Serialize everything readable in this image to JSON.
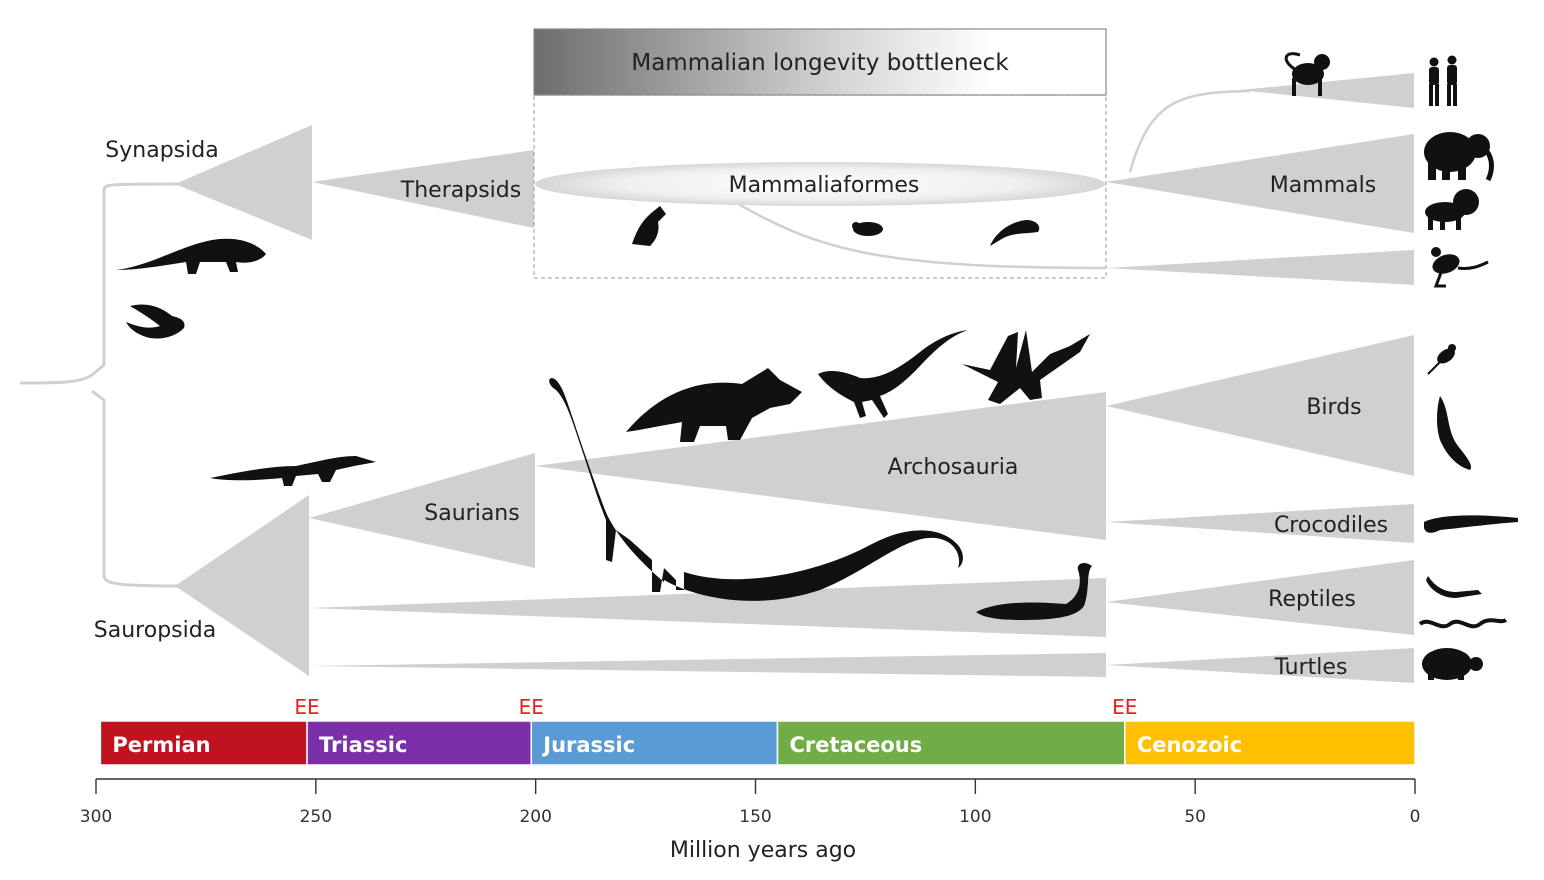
{
  "bottleneck_label": "Mammalian longevity bottleneck",
  "clades": {
    "synapsida": "Synapsida",
    "sauropsida": "Sauropsida",
    "therapsids": "Therapsids",
    "mammaliaformes": "Mammaliaformes",
    "mammals": "Mammals",
    "saurians": "Saurians",
    "archosauria": "Archosauria",
    "birds": "Birds",
    "crocodiles": "Crocodiles",
    "reptiles": "Reptiles",
    "turtles": "Turtles"
  },
  "extinction_label": "EE",
  "extinction_events_mya": [
    252,
    201,
    66
  ],
  "eras": [
    {
      "name": "Permian",
      "start": 299,
      "end": 252,
      "color": "#c1121f"
    },
    {
      "name": "Triassic",
      "start": 252,
      "end": 201,
      "color": "#7b2fa8"
    },
    {
      "name": "Jurassic",
      "start": 201,
      "end": 145,
      "color": "#5b9bd5"
    },
    {
      "name": "Cretaceous",
      "start": 145,
      "end": 66,
      "color": "#70ad47"
    },
    {
      "name": "Cenozoic",
      "start": 66,
      "end": 0,
      "color": "#ffc000"
    }
  ],
  "axis": {
    "title": "Million years ago",
    "ticks": [
      "300",
      "250",
      "200",
      "150",
      "100",
      "50",
      "0"
    ]
  },
  "colors": {
    "branch": "#d0d0d0",
    "silhouette": "#111111",
    "extinction": "#e8231f"
  },
  "icons": [
    "primate-icon",
    "human-icon",
    "elephant-icon",
    "lion-icon",
    "kangaroo-icon",
    "bird-icon",
    "vulture-icon",
    "crocodile-icon",
    "lizard-icon",
    "snake-icon",
    "turtle-icon",
    "sauropod-icon",
    "triceratops-icon",
    "theropod-icon",
    "pterosaur-icon",
    "plesiosaur-icon",
    "mammaliaform-icon",
    "synapsid-reptile-icon",
    "early-lizard-icon",
    "early-crocodylomorph-icon"
  ]
}
